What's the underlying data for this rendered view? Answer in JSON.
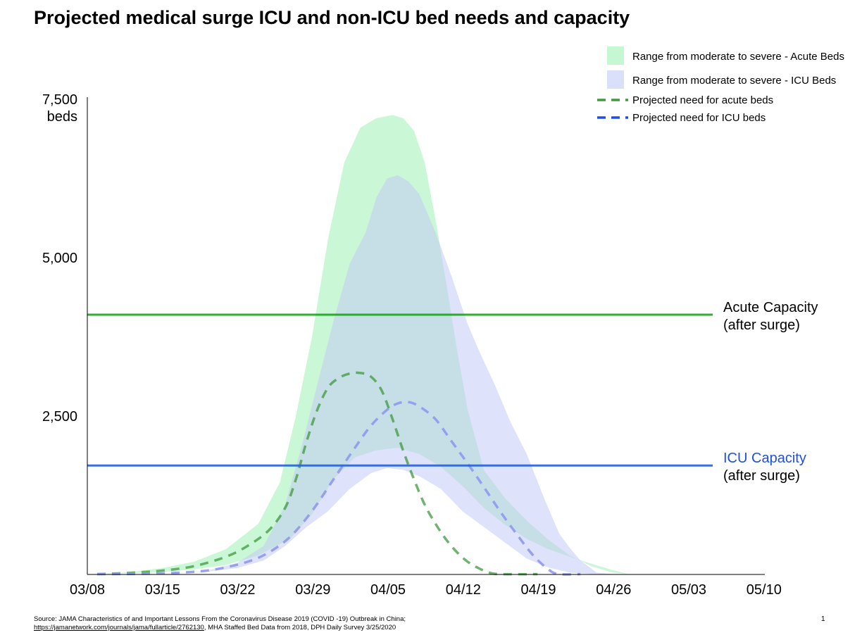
{
  "title": "Projected medical surge ICU and non-ICU bed needs and capacity",
  "source": {
    "line1": "Source: JAMA Characteristics of and Important Lessons From the Coronavirus Disease 2019 (COVID -19) Outbreak in China;",
    "link": "https://jamanetwork.com/journals/jama/fullarticle/2762130",
    "line2_rest": ", MHA Staffed Bed Data from 2018, DPH Daily Survey 3/25/2020"
  },
  "page_number": "1",
  "colors": {
    "acute_range": "#b8f5c8",
    "icu_range": "#c2cbf6",
    "acute_need": "#3f9a3f",
    "icu_need": "#8e99ee",
    "acute_capacity": "#1aa51a",
    "icu_capacity": "#2660d8",
    "icu_capacity_label": "#1f4ee0"
  },
  "chart_data": {
    "type": "area",
    "x_start": "03/08",
    "x_ticks": [
      "03/08",
      "03/15",
      "03/22",
      "03/29",
      "04/05",
      "04/12",
      "04/19",
      "04/26",
      "05/03",
      "05/10"
    ],
    "x_tick_days": [
      0,
      7,
      14,
      21,
      28,
      35,
      42,
      49,
      56,
      63
    ],
    "ylim": [
      0,
      7500
    ],
    "y_ticks": [
      {
        "value": 2500,
        "label": "2,500"
      },
      {
        "value": 5000,
        "label": "5,000"
      },
      {
        "value": 7500,
        "label": "7,500"
      }
    ],
    "y_unit_label": "beds",
    "legend_position": "top-right",
    "legend": [
      {
        "key": "acute_range",
        "label": "Range from moderate to severe - Acute Beds",
        "kind": "area"
      },
      {
        "key": "icu_range",
        "label": "Range from moderate to severe - ICU Beds",
        "kind": "area"
      },
      {
        "key": "acute_need",
        "label": "Projected need for acute beds",
        "kind": "dash"
      },
      {
        "key": "icu_need",
        "label": "Projected need for ICU beds",
        "kind": "dash"
      }
    ],
    "capacities": [
      {
        "key": "acute_capacity",
        "value": 4100,
        "label_line1": "Acute Capacity",
        "label_line2": "(after surge)"
      },
      {
        "key": "icu_capacity",
        "value": 1720,
        "label_line1": "ICU Capacity",
        "label_line2": "(after surge)"
      }
    ],
    "series": [
      {
        "key": "acute_range",
        "kind": "range",
        "upper": [
          [
            0,
            5
          ],
          [
            3,
            35
          ],
          [
            6,
            100
          ],
          [
            9,
            200
          ],
          [
            12,
            400
          ],
          [
            15,
            800
          ],
          [
            17,
            1450
          ],
          [
            18.5,
            2500
          ],
          [
            20,
            3750
          ],
          [
            21.5,
            5300
          ],
          [
            23,
            6500
          ],
          [
            24.5,
            7050
          ],
          [
            26,
            7200
          ],
          [
            27.5,
            7250
          ],
          [
            28.5,
            7200
          ],
          [
            29.5,
            7000
          ],
          [
            30.5,
            6500
          ],
          [
            31.5,
            5600
          ],
          [
            32.5,
            4600
          ],
          [
            33.5,
            3550
          ],
          [
            34.5,
            2600
          ],
          [
            36,
            1650
          ],
          [
            38,
            1200
          ],
          [
            40,
            850
          ],
          [
            42,
            550
          ],
          [
            44,
            300
          ],
          [
            46,
            130
          ],
          [
            48,
            30
          ],
          [
            49.5,
            5
          ]
        ],
        "lower": [
          [
            0,
            5
          ],
          [
            3,
            20
          ],
          [
            6,
            40
          ],
          [
            9,
            80
          ],
          [
            12,
            150
          ],
          [
            15,
            300
          ],
          [
            18,
            570
          ],
          [
            20,
            950
          ],
          [
            22,
            1500
          ],
          [
            24,
            1850
          ],
          [
            26,
            1960
          ],
          [
            28,
            2000
          ],
          [
            30,
            1900
          ],
          [
            32,
            1700
          ],
          [
            34,
            1400
          ],
          [
            36,
            1050
          ],
          [
            38,
            780
          ],
          [
            40,
            560
          ],
          [
            42,
            400
          ],
          [
            44,
            280
          ],
          [
            46,
            170
          ],
          [
            48,
            70
          ],
          [
            49.5,
            5
          ]
        ]
      },
      {
        "key": "icu_range",
        "kind": "range",
        "upper": [
          [
            0,
            5
          ],
          [
            6,
            10
          ],
          [
            10,
            50
          ],
          [
            13,
            180
          ],
          [
            15.5,
            450
          ],
          [
            17.5,
            1100
          ],
          [
            19,
            2000
          ],
          [
            20.5,
            3000
          ],
          [
            22,
            4000
          ],
          [
            23.5,
            4900
          ],
          [
            25,
            5400
          ],
          [
            26,
            5950
          ],
          [
            27,
            6250
          ],
          [
            28,
            6300
          ],
          [
            29,
            6200
          ],
          [
            30,
            6000
          ],
          [
            31.5,
            5400
          ],
          [
            33,
            4700
          ],
          [
            34.5,
            3950
          ],
          [
            35.5,
            3550
          ],
          [
            37,
            3000
          ],
          [
            38.5,
            2400
          ],
          [
            40,
            1900
          ],
          [
            41.5,
            1250
          ],
          [
            43,
            650
          ],
          [
            44,
            420
          ],
          [
            45,
            220
          ],
          [
            46.5,
            30
          ],
          [
            48,
            5
          ]
        ],
        "lower": [
          [
            0,
            5
          ],
          [
            6,
            10
          ],
          [
            10,
            40
          ],
          [
            13,
            100
          ],
          [
            15.5,
            220
          ],
          [
            17.5,
            450
          ],
          [
            19.5,
            750
          ],
          [
            21.5,
            1000
          ],
          [
            23.5,
            1350
          ],
          [
            25.5,
            1600
          ],
          [
            27,
            1680
          ],
          [
            28.5,
            1650
          ],
          [
            30,
            1550
          ],
          [
            32,
            1350
          ],
          [
            34,
            1000
          ],
          [
            36,
            750
          ],
          [
            38,
            500
          ],
          [
            40,
            250
          ],
          [
            42,
            110
          ],
          [
            44,
            30
          ],
          [
            46,
            5
          ],
          [
            48,
            5
          ]
        ]
      },
      {
        "key": "acute_need",
        "kind": "line",
        "points": [
          [
            0,
            5
          ],
          [
            3,
            25
          ],
          [
            6,
            60
          ],
          [
            9,
            130
          ],
          [
            12,
            280
          ],
          [
            14,
            450
          ],
          [
            16,
            700
          ],
          [
            17.5,
            1050
          ],
          [
            18.5,
            1500
          ],
          [
            19.5,
            2100
          ],
          [
            20.5,
            2600
          ],
          [
            21.5,
            2950
          ],
          [
            22.5,
            3100
          ],
          [
            23.5,
            3170
          ],
          [
            24.5,
            3180
          ],
          [
            25.5,
            3120
          ],
          [
            26.5,
            2900
          ],
          [
            27.5,
            2450
          ],
          [
            28.5,
            1950
          ],
          [
            29.5,
            1500
          ],
          [
            30.5,
            1100
          ],
          [
            31.5,
            800
          ],
          [
            32.5,
            550
          ],
          [
            33.5,
            350
          ],
          [
            34.5,
            200
          ],
          [
            35.5,
            100
          ],
          [
            36.5,
            30
          ],
          [
            37.5,
            5
          ],
          [
            41,
            5
          ]
        ]
      },
      {
        "key": "icu_need",
        "kind": "line",
        "points": [
          [
            0,
            5
          ],
          [
            4,
            10
          ],
          [
            8,
            30
          ],
          [
            11,
            80
          ],
          [
            14,
            200
          ],
          [
            16,
            350
          ],
          [
            18,
            600
          ],
          [
            20,
            1000
          ],
          [
            22,
            1500
          ],
          [
            24,
            2000
          ],
          [
            25.5,
            2350
          ],
          [
            27,
            2600
          ],
          [
            28,
            2700
          ],
          [
            29,
            2720
          ],
          [
            30,
            2650
          ],
          [
            31.5,
            2450
          ],
          [
            33,
            2100
          ],
          [
            34.5,
            1750
          ],
          [
            36,
            1380
          ],
          [
            37.5,
            1000
          ],
          [
            39,
            650
          ],
          [
            40.5,
            320
          ],
          [
            42,
            80
          ],
          [
            43,
            5
          ],
          [
            45,
            5
          ]
        ]
      }
    ]
  }
}
